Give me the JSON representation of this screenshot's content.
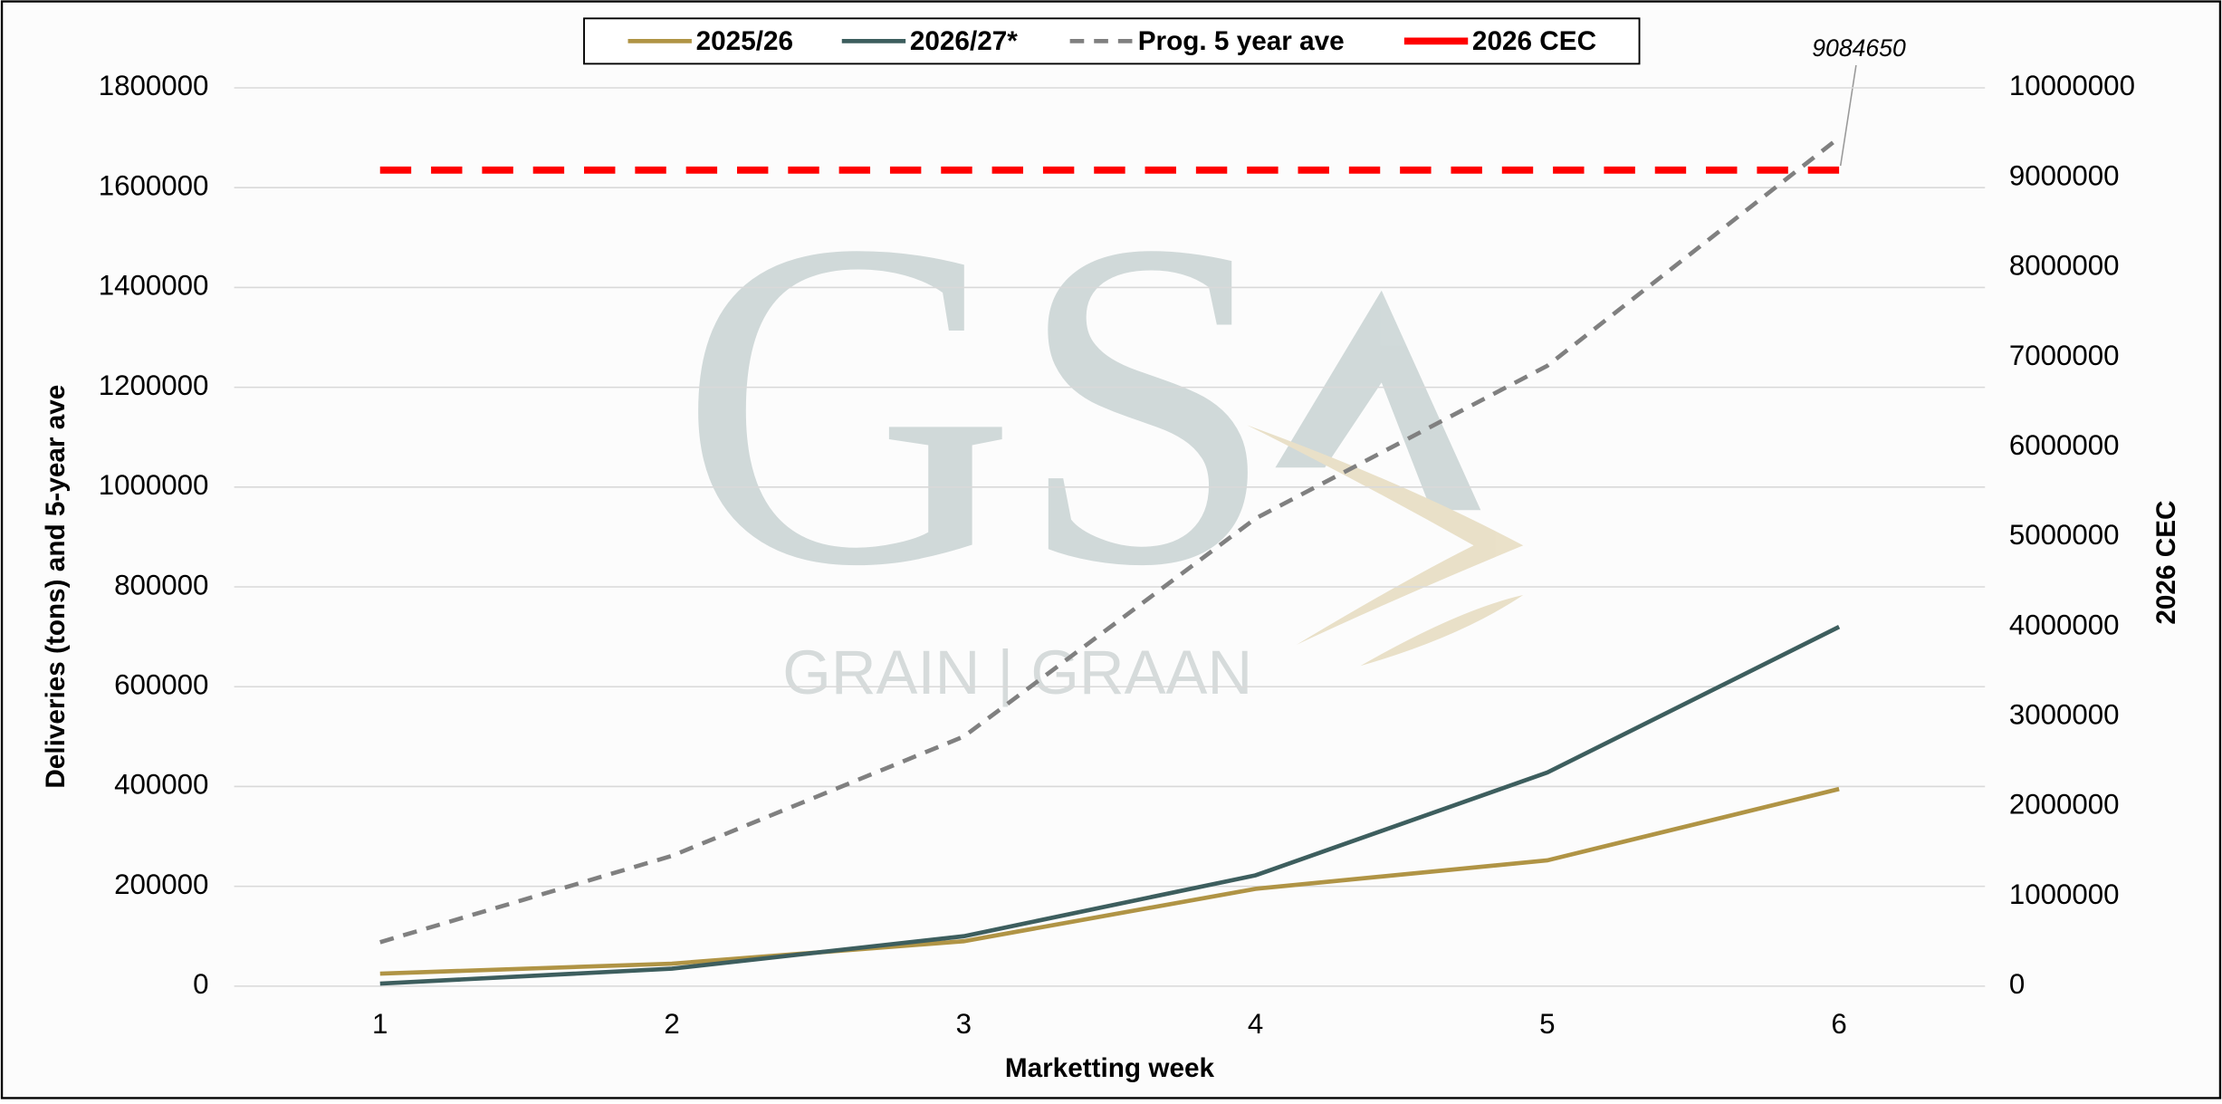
{
  "chart_data": {
    "type": "line",
    "categories": [
      "1",
      "2",
      "3",
      "4",
      "5",
      "6"
    ],
    "xlabel": "Marketting week",
    "ylabel": "Deliveries (tons) and 5-year ave",
    "y2label": "2026 CEC",
    "ylim": [
      0,
      1800000
    ],
    "yticks": [
      0,
      200000,
      400000,
      600000,
      800000,
      1000000,
      1200000,
      1400000,
      1600000,
      1800000
    ],
    "y2lim": [
      0,
      10000000
    ],
    "y2ticks": [
      0,
      1000000,
      2000000,
      3000000,
      4000000,
      5000000,
      6000000,
      7000000,
      8000000,
      9000000,
      10000000
    ],
    "grid": true,
    "legend": "top",
    "annotation": "9084650",
    "watermark": {
      "logo": "GS",
      "text": "GRAIN | GRAAN"
    },
    "series": [
      {
        "name": "2025/26",
        "color": "#b09445",
        "dash": "solid",
        "values": [
          25000,
          45000,
          90000,
          195000,
          252000,
          395000
        ]
      },
      {
        "name": "2026/27*",
        "color": "#3d5e5e",
        "dash": "solid",
        "values": [
          5000,
          35000,
          100000,
          222000,
          428000,
          720000
        ]
      },
      {
        "name": "Prog. 5 year ave",
        "color": "#808080",
        "dash": "dashed",
        "values": [
          88000,
          261000,
          500000,
          937000,
          1243000,
          1700000
        ]
      },
      {
        "name": "2026 CEC",
        "color": "#ff0000",
        "dash": "long-dashed",
        "axis": "y2",
        "values": [
          9084650,
          9084650,
          9084650,
          9084650,
          9084650,
          9084650
        ]
      }
    ]
  }
}
